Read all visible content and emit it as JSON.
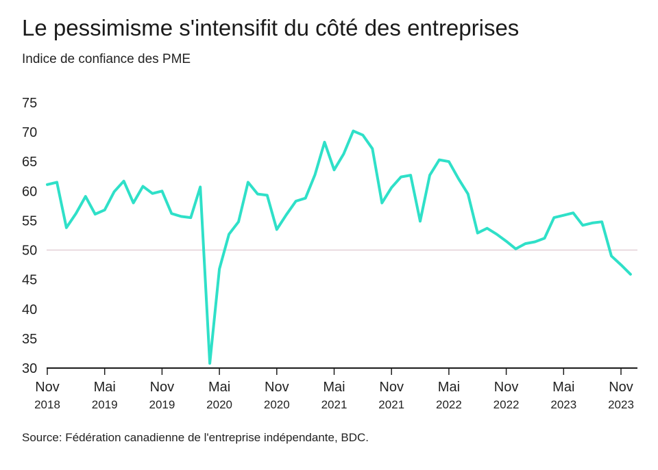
{
  "header": {
    "title": "Le pessimisme s'intensifit du côté des entreprises",
    "subtitle": "Indice de confiance des PME"
  },
  "footer": {
    "source": "Source: Fédération canadienne de l'entreprise indépendante, BDC."
  },
  "colors": {
    "line": "#2fe0c8",
    "reference_line": "#e3cfd6",
    "axis": "#1a1a1a"
  },
  "chart_data": {
    "type": "line",
    "title": "Le pessimisme s'intensifit du côté des entreprises",
    "subtitle": "Indice de confiance des PME",
    "xlabel": "",
    "ylabel": "",
    "ylim": [
      30,
      75
    ],
    "yticks": [
      30,
      35,
      40,
      45,
      50,
      55,
      60,
      65,
      70,
      75
    ],
    "reference_line": 50,
    "grid": false,
    "legend": "none",
    "xticks": [
      {
        "date": "2018-11",
        "month": "Nov",
        "year": "2018"
      },
      {
        "date": "2019-05",
        "month": "Mai",
        "year": "2019"
      },
      {
        "date": "2019-11",
        "month": "Nov",
        "year": "2019"
      },
      {
        "date": "2020-05",
        "month": "Mai",
        "year": "2020"
      },
      {
        "date": "2020-11",
        "month": "Nov",
        "year": "2020"
      },
      {
        "date": "2021-05",
        "month": "Mai",
        "year": "2021"
      },
      {
        "date": "2021-11",
        "month": "Nov",
        "year": "2021"
      },
      {
        "date": "2022-05",
        "month": "Mai",
        "year": "2022"
      },
      {
        "date": "2022-11",
        "month": "Nov",
        "year": "2022"
      },
      {
        "date": "2023-05",
        "month": "Mai",
        "year": "2023"
      },
      {
        "date": "2023-11",
        "month": "Nov",
        "year": "2023"
      }
    ],
    "series": [
      {
        "points": [
          [
            "2018-11",
            61.1
          ],
          [
            "2018-12",
            61.5
          ],
          [
            "2019-01",
            53.8
          ],
          [
            "2019-02",
            56.2
          ],
          [
            "2019-03",
            59.1
          ],
          [
            "2019-04",
            56.1
          ],
          [
            "2019-05",
            56.8
          ],
          [
            "2019-06",
            59.9
          ],
          [
            "2019-07",
            61.7
          ],
          [
            "2019-08",
            58.0
          ],
          [
            "2019-09",
            60.8
          ],
          [
            "2019-10",
            59.6
          ],
          [
            "2019-11",
            60.0
          ],
          [
            "2019-12",
            56.2
          ],
          [
            "2020-01",
            55.7
          ],
          [
            "2020-02",
            55.5
          ],
          [
            "2020-03",
            60.7
          ],
          [
            "2020-04",
            30.8
          ],
          [
            "2020-05",
            46.8
          ],
          [
            "2020-06",
            52.7
          ],
          [
            "2020-07",
            54.8
          ],
          [
            "2020-08",
            61.5
          ],
          [
            "2020-09",
            59.5
          ],
          [
            "2020-10",
            59.3
          ],
          [
            "2020-11",
            53.5
          ],
          [
            "2020-12",
            56.0
          ],
          [
            "2021-01",
            58.3
          ],
          [
            "2021-02",
            58.8
          ],
          [
            "2021-03",
            62.8
          ],
          [
            "2021-04",
            68.3
          ],
          [
            "2021-05",
            63.6
          ],
          [
            "2021-06",
            66.3
          ],
          [
            "2021-07",
            70.2
          ],
          [
            "2021-08",
            69.5
          ],
          [
            "2021-09",
            67.2
          ],
          [
            "2021-10",
            58.0
          ],
          [
            "2021-11",
            60.6
          ],
          [
            "2021-12",
            62.4
          ],
          [
            "2022-01",
            62.7
          ],
          [
            "2022-02",
            54.9
          ],
          [
            "2022-03",
            62.7
          ],
          [
            "2022-04",
            65.3
          ],
          [
            "2022-05",
            65.0
          ],
          [
            "2022-06",
            62.1
          ],
          [
            "2022-07",
            59.5
          ],
          [
            "2022-08",
            52.9
          ],
          [
            "2022-09",
            53.7
          ],
          [
            "2022-10",
            52.7
          ],
          [
            "2022-11",
            51.5
          ],
          [
            "2022-12",
            50.2
          ],
          [
            "2023-01",
            51.1
          ],
          [
            "2023-02",
            51.4
          ],
          [
            "2023-03",
            52.0
          ],
          [
            "2023-04",
            55.5
          ],
          [
            "2023-05",
            55.9
          ],
          [
            "2023-06",
            56.3
          ],
          [
            "2023-07",
            54.2
          ],
          [
            "2023-08",
            54.6
          ],
          [
            "2023-09",
            54.8
          ],
          [
            "2023-10",
            49.0
          ],
          [
            "2023-11",
            47.5
          ],
          [
            "2023-12",
            45.9
          ]
        ]
      }
    ]
  }
}
